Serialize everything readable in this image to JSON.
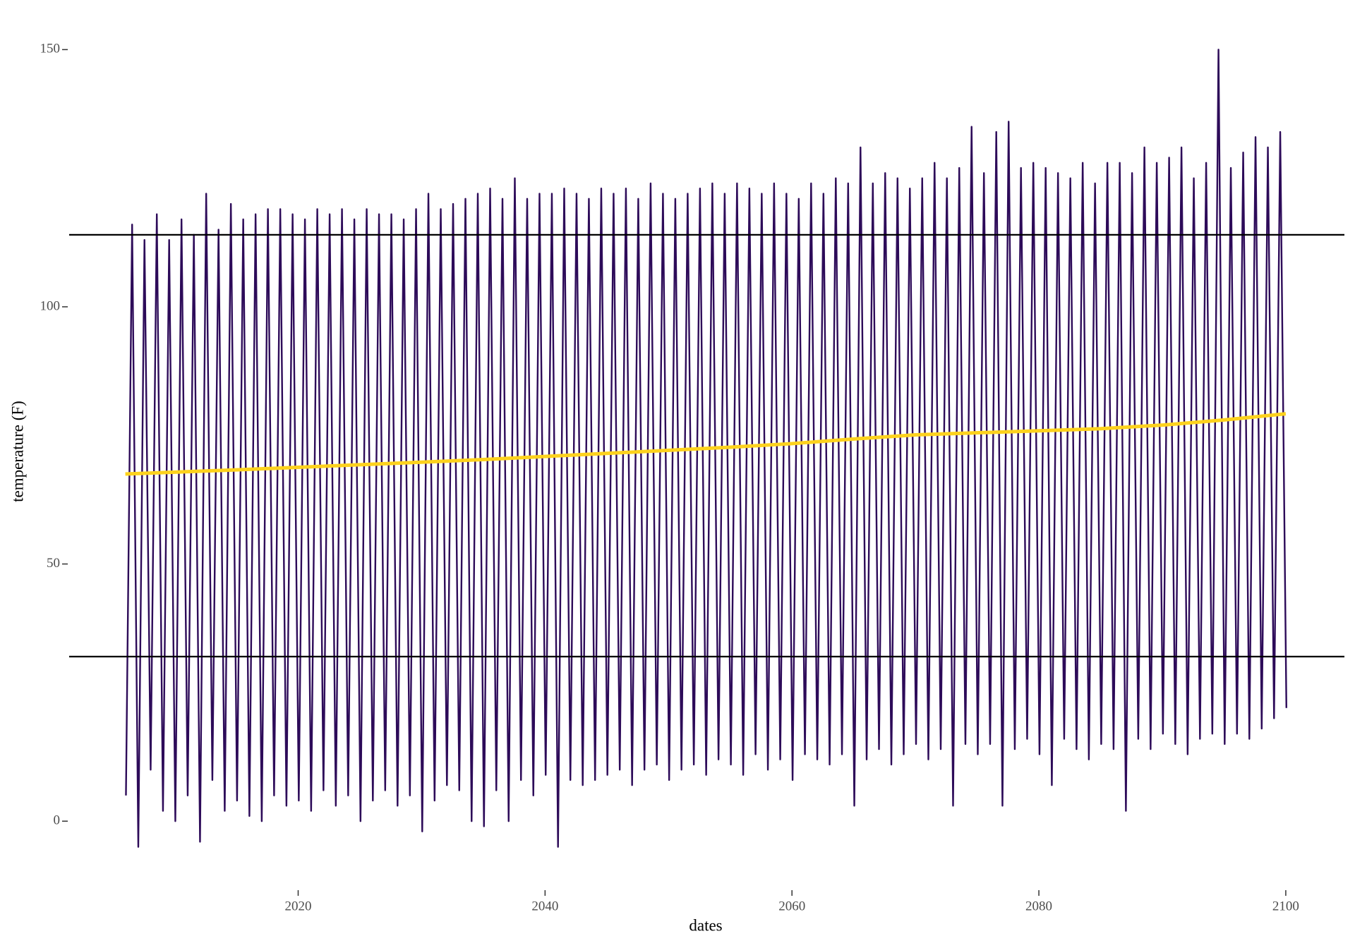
{
  "chart_data": {
    "type": "line",
    "x_label": "dates",
    "y_label": "temperature (F)",
    "xlim": [
      2001.45,
      2104.75
    ],
    "ylim": [
      -13,
      158
    ],
    "xticks": [
      2020,
      2040,
      2060,
      2080,
      2100
    ],
    "yticks": [
      0,
      50,
      100,
      150
    ],
    "grid": false,
    "hlines": [
      114,
      32
    ],
    "hline_color": "#000000",
    "series": [
      {
        "color": "#2d0b59",
        "x": [
          2006.05,
          2006.55,
          2007.05,
          2007.55,
          2008.05,
          2008.55,
          2009.05,
          2009.55,
          2010.05,
          2010.55,
          2011.05,
          2011.55,
          2012.05,
          2012.55,
          2013.05,
          2013.55,
          2014.05,
          2014.55,
          2015.05,
          2015.55,
          2016.05,
          2016.55,
          2017.05,
          2017.55,
          2018.05,
          2018.55,
          2019.05,
          2019.55,
          2020.05,
          2020.55,
          2021.05,
          2021.55,
          2022.05,
          2022.55,
          2023.05,
          2023.55,
          2024.05,
          2024.55,
          2025.05,
          2025.55,
          2026.05,
          2026.55,
          2027.05,
          2027.55,
          2028.05,
          2028.55,
          2029.05,
          2029.55,
          2030.05,
          2030.55,
          2031.05,
          2031.55,
          2032.05,
          2032.55,
          2033.05,
          2033.55,
          2034.05,
          2034.55,
          2035.05,
          2035.55,
          2036.05,
          2036.55,
          2037.05,
          2037.55,
          2038.05,
          2038.55,
          2039.05,
          2039.55,
          2040.05,
          2040.55,
          2041.05,
          2041.55,
          2042.05,
          2042.55,
          2043.05,
          2043.55,
          2044.05,
          2044.55,
          2045.05,
          2045.55,
          2046.05,
          2046.55,
          2047.05,
          2047.55,
          2048.05,
          2048.55,
          2049.05,
          2049.55,
          2050.05,
          2050.55,
          2051.05,
          2051.55,
          2052.05,
          2052.55,
          2053.05,
          2053.55,
          2054.05,
          2054.55,
          2055.05,
          2055.55,
          2056.05,
          2056.55,
          2057.05,
          2057.55,
          2058.05,
          2058.55,
          2059.05,
          2059.55,
          2060.05,
          2060.55,
          2061.05,
          2061.55,
          2062.05,
          2062.55,
          2063.05,
          2063.55,
          2064.05,
          2064.55,
          2065.05,
          2065.55,
          2066.05,
          2066.55,
          2067.05,
          2067.55,
          2068.05,
          2068.55,
          2069.05,
          2069.55,
          2070.05,
          2070.55,
          2071.05,
          2071.55,
          2072.05,
          2072.55,
          2073.05,
          2073.55,
          2074.05,
          2074.55,
          2075.05,
          2075.55,
          2076.05,
          2076.55,
          2077.05,
          2077.55,
          2078.05,
          2078.55,
          2079.05,
          2079.55,
          2080.05,
          2080.55,
          2081.05,
          2081.55,
          2082.05,
          2082.55,
          2083.05,
          2083.55,
          2084.05,
          2084.55,
          2085.05,
          2085.55,
          2086.05,
          2086.55,
          2087.05,
          2087.55,
          2088.05,
          2088.55,
          2089.05,
          2089.55,
          2090.05,
          2090.55,
          2091.05,
          2091.55,
          2092.05,
          2092.55,
          2093.05,
          2093.55,
          2094.05,
          2094.55,
          2095.05,
          2095.55,
          2096.05,
          2096.55,
          2097.05,
          2097.55,
          2098.05,
          2098.55,
          2099.05,
          2099.55,
          2100.05
        ],
        "values": [
          5,
          116,
          -5,
          113,
          10,
          118,
          2,
          113,
          0,
          117,
          5,
          114,
          -4,
          122,
          8,
          115,
          2,
          120,
          4,
          117,
          1,
          118,
          0,
          119,
          5,
          119,
          3,
          118,
          4,
          117,
          2,
          119,
          6,
          118,
          3,
          119,
          5,
          117,
          0,
          119,
          4,
          118,
          6,
          118,
          3,
          117,
          5,
          119,
          -2,
          122,
          4,
          119,
          7,
          120,
          6,
          121,
          0,
          122,
          -1,
          123,
          6,
          121,
          0,
          125,
          8,
          121,
          5,
          122,
          9,
          122,
          -5,
          123,
          8,
          122,
          7,
          121,
          8,
          123,
          9,
          122,
          10,
          123,
          7,
          121,
          10,
          124,
          11,
          122,
          8,
          121,
          10,
          122,
          11,
          123,
          9,
          124,
          12,
          122,
          11,
          124,
          9,
          123,
          13,
          122,
          10,
          124,
          12,
          122,
          8,
          121,
          13,
          124,
          12,
          122,
          11,
          125,
          13,
          124,
          3,
          131,
          12,
          124,
          14,
          126,
          11,
          125,
          13,
          123,
          15,
          125,
          12,
          128,
          14,
          125,
          3,
          127,
          15,
          135,
          13,
          126,
          15,
          134,
          3,
          136,
          14,
          127,
          16,
          128,
          13,
          127,
          7,
          126,
          16,
          125,
          14,
          128,
          12,
          124,
          15,
          128,
          14,
          128,
          2,
          126,
          16,
          131,
          14,
          128,
          17,
          129,
          15,
          131,
          13,
          125,
          16,
          128,
          17,
          150,
          15,
          127,
          17,
          130,
          16,
          133,
          18,
          131,
          20,
          134,
          22
        ]
      },
      {
        "color": "#fdd21d",
        "x": [
          2006,
          2015,
          2025,
          2035,
          2045,
          2055,
          2060,
          2065,
          2070,
          2080,
          2085,
          2090,
          2095,
          2100
        ],
        "values": [
          67.5,
          68.3,
          69.3,
          70.3,
          71.5,
          72.7,
          73.4,
          74.3,
          75.1,
          75.9,
          76.3,
          77.0,
          78.0,
          79.2
        ]
      }
    ]
  }
}
